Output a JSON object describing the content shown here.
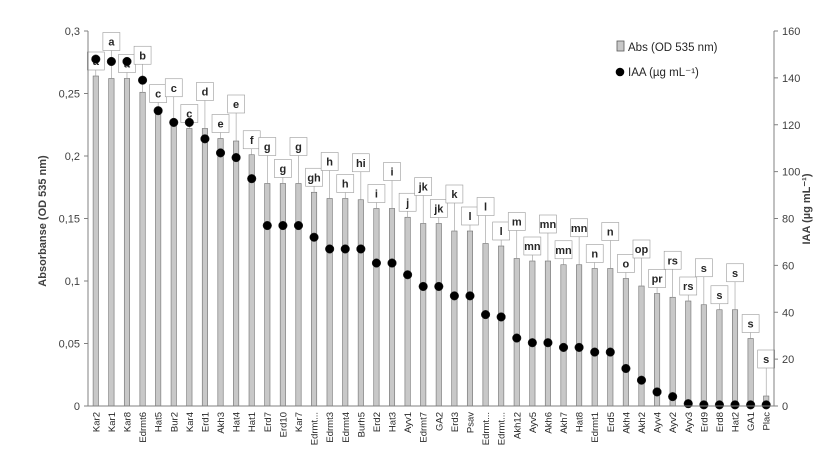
{
  "chart_data": {
    "type": "bar",
    "xlabel": "",
    "ylabel": "Absorbanse (OD 535 nm)",
    "y2label": "IAA (µg mL⁻¹)",
    "ylim": [
      0,
      0.3
    ],
    "y2lim": [
      0,
      160
    ],
    "yticks": [
      "0",
      "0,05",
      "0,1",
      "0,15",
      "0,2",
      "0,25",
      "0,3"
    ],
    "y2ticks": [
      "0",
      "20",
      "40",
      "60",
      "80",
      "100",
      "120",
      "140",
      "160"
    ],
    "grid": false,
    "legend_position": "top-right",
    "categories": [
      "Kar2",
      "Kar1",
      "Kar8",
      "Edrmt6",
      "Hat5",
      "Bur2",
      "Kar4",
      "Erd1",
      "Akh3",
      "Hat4",
      "Hat1",
      "Erd7",
      "Erd10",
      "Kar7",
      "Edrmt...",
      "Edrmt3",
      "Edrmt4",
      "Burh5",
      "Erd2",
      "Hat3",
      "Ayv1",
      "Edrmt7",
      "GA2",
      "Erd3",
      "Psav",
      "Edrmt...",
      "Edrmt...",
      "Akh12",
      "Ayv5",
      "Akh6",
      "Akh7",
      "Hat8",
      "Edrmt1",
      "Erd5",
      "Akh4",
      "Akh2",
      "Ayv4",
      "Ayv2",
      "Ayv3",
      "Erd9",
      "Erd8",
      "Hat2",
      "GA1",
      "Plac"
    ],
    "series": [
      {
        "name": "Abs (OD 535 nm)",
        "kind": "bar",
        "axis": "left",
        "color": "#c8c8c8",
        "values": [
          0.264,
          0.262,
          0.262,
          0.251,
          0.238,
          0.225,
          0.222,
          0.222,
          0.214,
          0.212,
          0.201,
          0.178,
          0.178,
          0.178,
          0.171,
          0.166,
          0.166,
          0.165,
          0.158,
          0.158,
          0.151,
          0.146,
          0.146,
          0.14,
          0.14,
          0.13,
          0.128,
          0.118,
          0.116,
          0.116,
          0.113,
          0.113,
          0.11,
          0.11,
          0.102,
          0.096,
          0.09,
          0.087,
          0.084,
          0.081,
          0.077,
          0.077,
          0.054,
          0.008
        ]
      },
      {
        "name": "IAA (µg mL⁻¹)",
        "kind": "marker",
        "axis": "right",
        "color": "#000000",
        "values": [
          148,
          147,
          147,
          139,
          126,
          121,
          121,
          114,
          108,
          106,
          97,
          77,
          77,
          77,
          72,
          67,
          67,
          67,
          61,
          61,
          56,
          51,
          51,
          47,
          47,
          39,
          38,
          29,
          27,
          27,
          25,
          25,
          23,
          23,
          16,
          11,
          6,
          4,
          1,
          0.5,
          0.5,
          0.5,
          0.5,
          0.5
        ]
      }
    ],
    "letters": [
      "a",
      "a",
      "a",
      "b",
      "c",
      "c",
      "c",
      "d",
      "e",
      "e",
      "f",
      "g",
      "g",
      "g",
      "gh",
      "h",
      "h",
      "hi",
      "i",
      "i",
      "j",
      "jk",
      "jk",
      "k",
      "l",
      "l",
      "l",
      "m",
      "mn",
      "mn",
      "mn",
      "mn",
      "n",
      "n",
      "o",
      "op",
      "pr",
      "rs",
      "rs",
      "s",
      "s",
      "s",
      "s",
      "s"
    ]
  }
}
